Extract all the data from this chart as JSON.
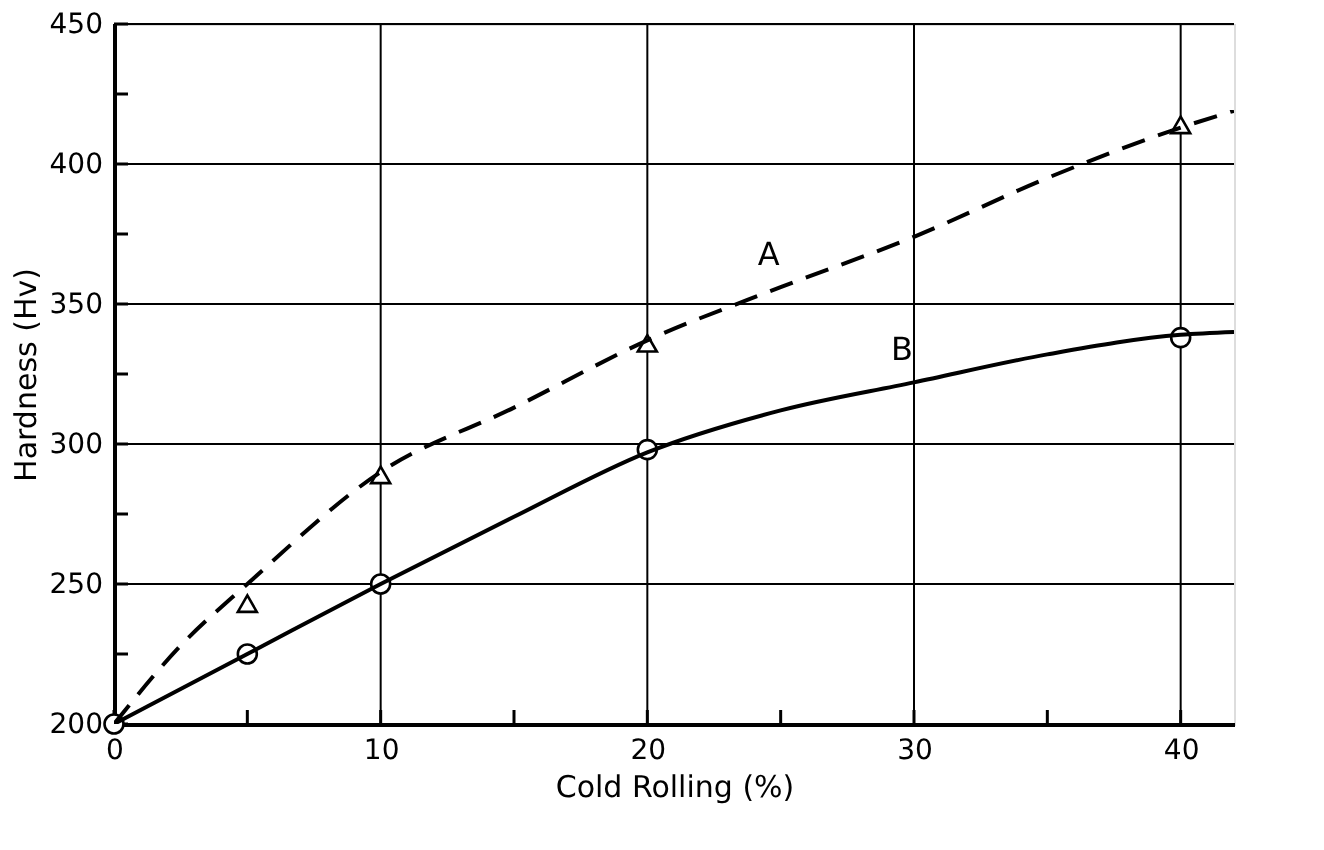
{
  "chart_data": {
    "type": "line",
    "xlabel": "Cold Rolling (%)",
    "ylabel": "Hardness (Hv)",
    "xlim": [
      0,
      42
    ],
    "ylim": [
      200,
      450
    ],
    "xticks": [
      0,
      {
        "value": 5,
        "label": null
      },
      10,
      {
        "value": 15,
        "label": null
      },
      20,
      {
        "value": 25,
        "label": null
      },
      30,
      {
        "value": 35,
        "label": null
      },
      40
    ],
    "yticks": [
      200,
      {
        "value": 225,
        "label": null
      },
      250,
      {
        "value": 275,
        "label": null
      },
      300,
      {
        "value": 325,
        "label": null
      },
      350,
      {
        "value": 375,
        "label": null
      },
      400,
      {
        "value": 425,
        "label": null
      },
      450
    ],
    "grid": true,
    "series": [
      {
        "type": "scatter",
        "marker": "triangle",
        "color": "#000000",
        "x": [
          5,
          10,
          20,
          40
        ],
        "values": [
          242,
          288,
          335,
          413
        ]
      },
      {
        "type": "scatter",
        "marker": "circle",
        "color": "#000000",
        "x": [
          0,
          5,
          10,
          20,
          40
        ],
        "values": [
          200,
          225,
          250,
          298,
          338
        ]
      },
      {
        "name": "A",
        "line_style": "dashed",
        "marker": "none",
        "color": "#000000",
        "x": [
          0,
          2.5,
          5,
          10,
          15,
          20,
          25,
          30,
          35,
          40,
          42
        ],
        "values": [
          200,
          228,
          250,
          290,
          313,
          337,
          356,
          374,
          395,
          413,
          419
        ]
      },
      {
        "name": "B",
        "line_style": "solid",
        "marker": "none",
        "color": "#000000",
        "x": [
          0,
          5,
          10,
          15,
          20,
          25,
          30,
          35,
          40,
          42
        ],
        "values": [
          200,
          225,
          250,
          274,
          297,
          312,
          322,
          332,
          339,
          340
        ]
      }
    ]
  }
}
